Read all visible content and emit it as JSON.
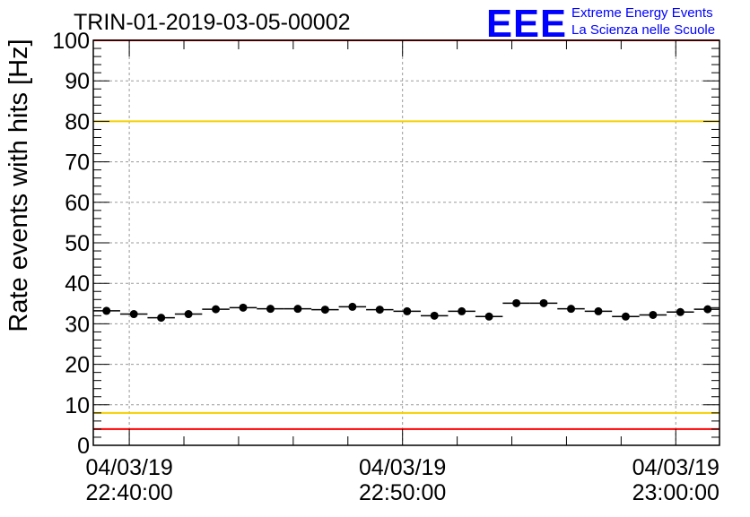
{
  "chart_data": {
    "type": "scatter",
    "title": "TRIN-01-2019-03-05-00002",
    "ylabel": "Rate events with hits [Hz]",
    "xlabel": "",
    "ylim": [
      0,
      100
    ],
    "y_ticks": [
      0,
      10,
      20,
      30,
      40,
      50,
      60,
      70,
      80,
      90,
      100
    ],
    "xlim": [
      "2019-03-04T22:38:41",
      "2019-03-04T23:01:36"
    ],
    "x_ticks": [
      {
        "time": "2019-03-04T22:40:00",
        "date_label": "04/03/19",
        "time_label": "22:40:00"
      },
      {
        "time": "2019-03-04T22:50:00",
        "date_label": "04/03/19",
        "time_label": "22:50:00"
      },
      {
        "time": "2019-03-04T23:00:00",
        "date_label": "04/03/19",
        "time_label": "23:00:00"
      }
    ],
    "grid": true,
    "threshold_lines": [
      {
        "y": 100,
        "color": "#ff0000"
      },
      {
        "y": 80,
        "color": "#f5d000"
      },
      {
        "y": 8,
        "color": "#f5d000"
      },
      {
        "y": 4,
        "color": "#ff0000"
      }
    ],
    "bin_seconds": 60,
    "points": [
      {
        "x": "2019-03-04T22:39:10",
        "y": 33.2
      },
      {
        "x": "2019-03-04T22:40:10",
        "y": 32.4
      },
      {
        "x": "2019-03-04T22:41:10",
        "y": 31.5
      },
      {
        "x": "2019-03-04T22:42:10",
        "y": 32.4
      },
      {
        "x": "2019-03-04T22:43:10",
        "y": 33.6
      },
      {
        "x": "2019-03-04T22:44:10",
        "y": 34.0
      },
      {
        "x": "2019-03-04T22:45:10",
        "y": 33.7
      },
      {
        "x": "2019-03-04T22:46:10",
        "y": 33.7
      },
      {
        "x": "2019-03-04T22:47:10",
        "y": 33.5
      },
      {
        "x": "2019-03-04T22:48:10",
        "y": 34.2
      },
      {
        "x": "2019-03-04T22:49:10",
        "y": 33.5
      },
      {
        "x": "2019-03-04T22:50:10",
        "y": 33.1
      },
      {
        "x": "2019-03-04T22:51:10",
        "y": 32.0
      },
      {
        "x": "2019-03-04T22:52:10",
        "y": 33.1
      },
      {
        "x": "2019-03-04T22:53:10",
        "y": 31.8
      },
      {
        "x": "2019-03-04T22:54:10",
        "y": 35.1
      },
      {
        "x": "2019-03-04T22:55:10",
        "y": 35.1
      },
      {
        "x": "2019-03-04T22:56:10",
        "y": 33.7
      },
      {
        "x": "2019-03-04T22:57:10",
        "y": 33.1
      },
      {
        "x": "2019-03-04T22:58:10",
        "y": 31.8
      },
      {
        "x": "2019-03-04T22:59:10",
        "y": 32.2
      },
      {
        "x": "2019-03-04T23:00:10",
        "y": 32.9
      },
      {
        "x": "2019-03-04T23:01:10",
        "y": 33.6
      }
    ]
  },
  "logo": {
    "mark": "EEE",
    "line1": "Extreme Energy Events",
    "line2": "La Scienza nelle Scuole",
    "color": "#0000ff"
  }
}
